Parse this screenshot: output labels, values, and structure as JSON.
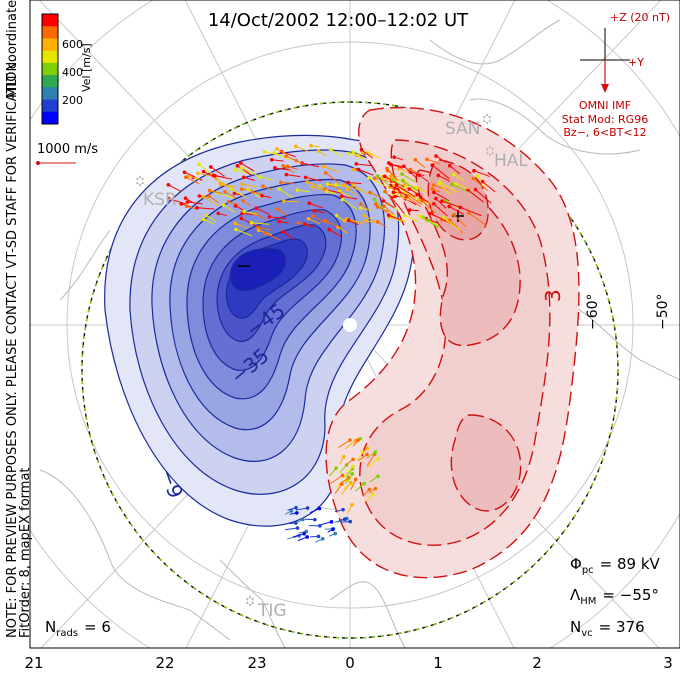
{
  "title": "14/Oct/2002 12:00–12:02 UT",
  "colorbar": {
    "label": "Vel [m/s]",
    "ticks": [
      "600",
      "400",
      "200"
    ],
    "colors": [
      "#ff0000",
      "#ff6a00",
      "#ffb000",
      "#e6e600",
      "#7fd000",
      "#2fa84f",
      "#2f7fb0",
      "#1f3fd0",
      "#0000ff"
    ]
  },
  "side_text": {
    "coords": "MLT coordinates",
    "note": "NOTE: FOR PREVIEW PURPOSES ONLY. PLEASE CONTACT VT-SD STAFF FOR VERIFICATION.",
    "fit": "FitOrder: 8, mapEX format"
  },
  "scale_vector_label": "1000 m/s",
  "imf": {
    "z_label": "+Z (20 nT)",
    "y_label": "+Y",
    "source": "OMNI IMF",
    "stat_mod": "Stat Mod: RG96",
    "condition": "Bz−, 6<BT<12"
  },
  "stations": [
    "SAN",
    "HAL",
    "KSR",
    "TIG"
  ],
  "latitude_labels": [
    "−60°",
    "−50°"
  ],
  "contour_labels": [
    "−45",
    "−35",
    "−9",
    "3"
  ],
  "mlt_labels": [
    "21",
    "22",
    "23",
    "0",
    "1",
    "2",
    "3"
  ],
  "stats": {
    "phi_pc": {
      "symbol": "Φ",
      "sub": "pc",
      "value": "= 89 kV"
    },
    "lambda_hm": {
      "symbol": "Λ",
      "sub": "HM",
      "value": "= −55°"
    },
    "n_vc": {
      "symbol": "N",
      "sub": "vc",
      "value": "= 376"
    },
    "n_rads": {
      "symbol": "N",
      "sub": "rads",
      "value": "= 6"
    }
  }
}
